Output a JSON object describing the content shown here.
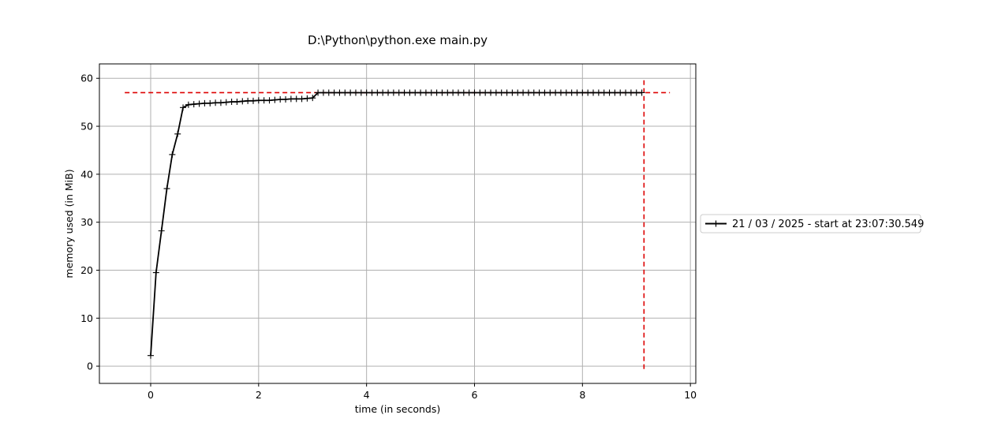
{
  "chart_data": {
    "type": "line",
    "title": "D:\\Python\\python.exe main.py",
    "xlabel": "time (in seconds)",
    "ylabel": "memory used (in MiB)",
    "xlim": [
      -0.95,
      10.1
    ],
    "ylim": [
      -3.6,
      63.0
    ],
    "xticks": [
      0,
      2,
      4,
      6,
      8,
      10
    ],
    "yticks": [
      0,
      10,
      20,
      30,
      40,
      50,
      60
    ],
    "grid": true,
    "legend_position": "right-outside",
    "series": [
      {
        "name": "21 / 03 / 2025 - start at 23:07:30.549",
        "color": "#000000",
        "marker": "+",
        "x": [
          0,
          0.1,
          0.2,
          0.3,
          0.4,
          0.5,
          0.6,
          0.7,
          0.8,
          0.9,
          1.0,
          1.1,
          1.2,
          1.3,
          1.4,
          1.5,
          1.6,
          1.7,
          1.8,
          1.9,
          2.0,
          2.1,
          2.2,
          2.3,
          2.4,
          2.5,
          2.6,
          2.7,
          2.8,
          2.9,
          3.0,
          3.1,
          3.2,
          3.3,
          3.4,
          3.5,
          3.6,
          3.7,
          3.8,
          3.9,
          4.0,
          4.1,
          4.2,
          4.3,
          4.4,
          4.5,
          4.6,
          4.7,
          4.8,
          4.9,
          5.0,
          5.1,
          5.2,
          5.3,
          5.4,
          5.5,
          5.6,
          5.7,
          5.8,
          5.9,
          6.0,
          6.1,
          6.2,
          6.3,
          6.4,
          6.5,
          6.6,
          6.7,
          6.8,
          6.9,
          7.0,
          7.1,
          7.2,
          7.3,
          7.4,
          7.5,
          7.6,
          7.7,
          7.8,
          7.9,
          8.0,
          8.1,
          8.2,
          8.3,
          8.4,
          8.5,
          8.6,
          8.7,
          8.8,
          8.9,
          9.0,
          9.1
        ],
        "y": [
          2.2,
          19.5,
          28.2,
          37.0,
          44.1,
          48.4,
          53.9,
          54.5,
          54.6,
          54.7,
          54.8,
          54.8,
          54.9,
          54.9,
          55.0,
          55.1,
          55.1,
          55.2,
          55.3,
          55.3,
          55.4,
          55.4,
          55.4,
          55.5,
          55.6,
          55.6,
          55.7,
          55.7,
          55.7,
          55.8,
          55.9,
          57.0,
          57.0,
          57.0,
          57.0,
          57.0,
          57.0,
          57.0,
          57.0,
          57.0,
          57.0,
          57.0,
          57.0,
          57.0,
          57.0,
          57.0,
          57.0,
          57.0,
          57.0,
          57.0,
          57.0,
          57.0,
          57.0,
          57.0,
          57.0,
          57.0,
          57.0,
          57.0,
          57.0,
          57.0,
          57.0,
          57.0,
          57.0,
          57.0,
          57.0,
          57.0,
          57.0,
          57.0,
          57.0,
          57.0,
          57.0,
          57.0,
          57.0,
          57.0,
          57.0,
          57.0,
          57.0,
          57.0,
          57.0,
          57.0,
          57.0,
          57.0,
          57.0,
          57.0,
          57.0,
          57.0,
          57.0,
          57.0,
          57.0,
          57.0,
          57.0,
          57.0
        ]
      }
    ],
    "reference_lines": [
      {
        "orientation": "horizontal",
        "value": 57.0,
        "from": -0.48,
        "to": 9.62,
        "color": "#dd0000",
        "style": "dashed"
      },
      {
        "orientation": "vertical",
        "value": 9.14,
        "from": -0.6,
        "to": 60.0,
        "color": "#dd0000",
        "style": "dashed"
      }
    ]
  }
}
